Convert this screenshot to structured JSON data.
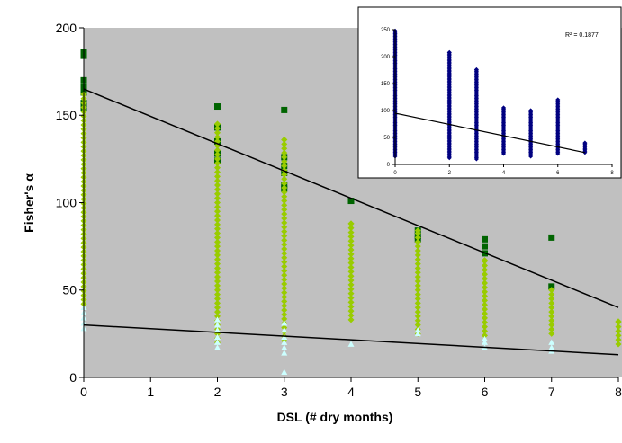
{
  "chart_data": [
    {
      "type": "scatter",
      "title": "",
      "xlabel": "DSL (# dry months)",
      "ylabel": "Fisher's α",
      "xlim": [
        0,
        8
      ],
      "ylim": [
        0,
        200
      ],
      "x_ticks": [
        "0",
        "1",
        "2",
        "3",
        "4",
        "5",
        "6",
        "7",
        "8"
      ],
      "y_ticks": [
        "0",
        "50",
        "100",
        "150",
        "200"
      ],
      "plot_background": "#c0c0c0",
      "grid": false,
      "series": [
        {
          "marker": "square",
          "color": "#006400",
          "points": [
            [
              0,
              184
            ],
            [
              0,
              186
            ],
            [
              0,
              170
            ],
            [
              0,
              166
            ],
            [
              0,
              163
            ],
            [
              0,
              157
            ],
            [
              0,
              154
            ],
            [
              2,
              155
            ],
            [
              2,
              143
            ],
            [
              2,
              135
            ],
            [
              2,
              128
            ],
            [
              2,
              124
            ],
            [
              3,
              153
            ],
            [
              3,
              126
            ],
            [
              3,
              121
            ],
            [
              3,
              117
            ],
            [
              3,
              110
            ],
            [
              3,
              108
            ],
            [
              4,
              101
            ],
            [
              5,
              84
            ],
            [
              5,
              81
            ],
            [
              5,
              79
            ],
            [
              6,
              79
            ],
            [
              6,
              75
            ],
            [
              6,
              71
            ],
            [
              7,
              80
            ],
            [
              7,
              52
            ]
          ]
        },
        {
          "marker": "diamond",
          "color": "#99cc00",
          "ranges": [
            [
              0,
              42,
              162
            ],
            [
              2,
              20,
              145
            ],
            [
              3,
              21,
              136
            ],
            [
              4,
              33,
              88
            ],
            [
              5,
              25,
              84
            ],
            [
              6,
              24,
              67
            ],
            [
              7,
              25,
              50
            ],
            [
              8,
              19,
              32
            ]
          ]
        },
        {
          "marker": "triangle",
          "color": "#ccffff",
          "points": [
            [
              0,
              28
            ],
            [
              0,
              31
            ],
            [
              0,
              34
            ],
            [
              0,
              37
            ],
            [
              0,
              40
            ],
            [
              2,
              17
            ],
            [
              2,
              20
            ],
            [
              2,
              23
            ],
            [
              2,
              27
            ],
            [
              2,
              30
            ],
            [
              2,
              33
            ],
            [
              3,
              3
            ],
            [
              3,
              14
            ],
            [
              3,
              17
            ],
            [
              3,
              20
            ],
            [
              3,
              23
            ],
            [
              3,
              27
            ],
            [
              3,
              31
            ],
            [
              4,
              19
            ],
            [
              5,
              25
            ],
            [
              5,
              27
            ],
            [
              6,
              17
            ],
            [
              6,
              20
            ],
            [
              6,
              22
            ],
            [
              7,
              15
            ],
            [
              7,
              17
            ],
            [
              7,
              20
            ]
          ]
        }
      ],
      "trendlines": [
        {
          "x": [
            0,
            8
          ],
          "y": [
            165,
            40
          ],
          "color": "#000000"
        },
        {
          "x": [
            0,
            8
          ],
          "y": [
            30,
            13
          ],
          "color": "#000000"
        }
      ]
    },
    {
      "type": "scatter",
      "title": "",
      "xlim": [
        0,
        8
      ],
      "ylim": [
        0,
        250
      ],
      "x_ticks": [
        "0",
        "2",
        "4",
        "6",
        "8"
      ],
      "y_ticks": [
        "0",
        "50",
        "100",
        "150",
        "200",
        "250"
      ],
      "annotation": "R² = 0.1877",
      "plot_background": "#ffffff",
      "series": [
        {
          "marker": "diamond",
          "color": "#000080",
          "ranges": [
            [
              0,
              15,
              248
            ],
            [
              2,
              12,
              208
            ],
            [
              3,
              10,
              176
            ],
            [
              4,
              20,
              105
            ],
            [
              5,
              15,
              100
            ],
            [
              6,
              20,
              120
            ],
            [
              7,
              22,
              40
            ]
          ]
        }
      ],
      "trendlines": [
        {
          "x": [
            0,
            7
          ],
          "y": [
            95,
            22
          ],
          "color": "#000000"
        }
      ]
    }
  ]
}
